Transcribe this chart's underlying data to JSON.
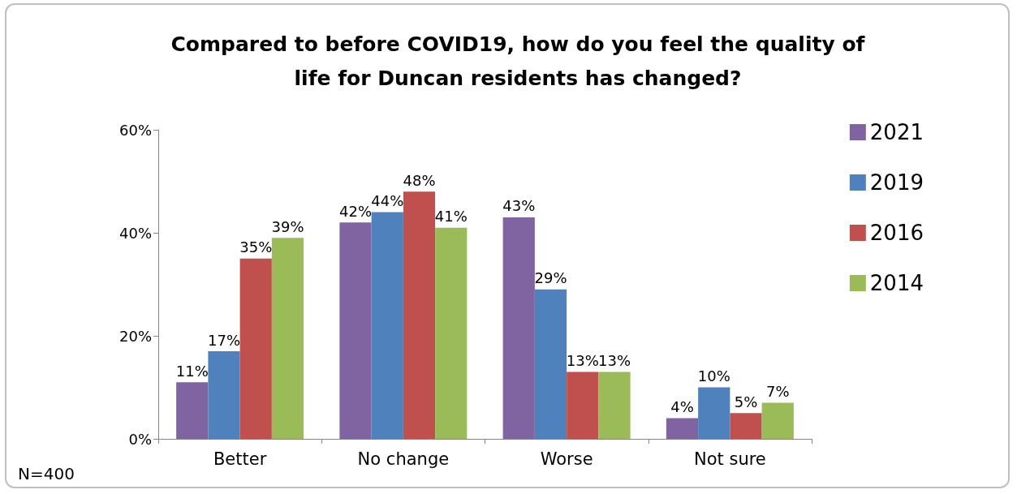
{
  "chart_data": {
    "type": "bar",
    "title": "Compared to before COVID19, how do you feel the quality of\nlife for Duncan residents has changed?",
    "categories": [
      "Better",
      "No change",
      "Worse",
      "Not sure"
    ],
    "series": [
      {
        "name": "2021",
        "color": "#8064a2",
        "values": [
          11,
          42,
          43,
          4
        ],
        "value_labels": [
          "11%",
          "42%",
          "43%",
          "4%"
        ]
      },
      {
        "name": "2019",
        "color": "#4f81bd",
        "values": [
          17,
          44,
          29,
          10
        ],
        "value_labels": [
          "17%",
          "44%",
          "29%",
          "10%"
        ]
      },
      {
        "name": "2016",
        "color": "#c0504d",
        "values": [
          35,
          48,
          13,
          5
        ],
        "value_labels": [
          "35%",
          "48%",
          "13%",
          "5%"
        ]
      },
      {
        "name": "2014",
        "color": "#9bbb59",
        "values": [
          39,
          41,
          13,
          7
        ],
        "value_labels": [
          "39%",
          "41%",
          "13%",
          "7%"
        ]
      }
    ],
    "ylim": [
      0,
      60
    ],
    "yticks": [
      {
        "value": 0,
        "label": "0%"
      },
      {
        "value": 20,
        "label": "20%"
      },
      {
        "value": 40,
        "label": "40%"
      },
      {
        "value": 60,
        "label": "60%"
      }
    ],
    "grid": false,
    "legend": "right",
    "annotations": [
      "N=400"
    ]
  }
}
